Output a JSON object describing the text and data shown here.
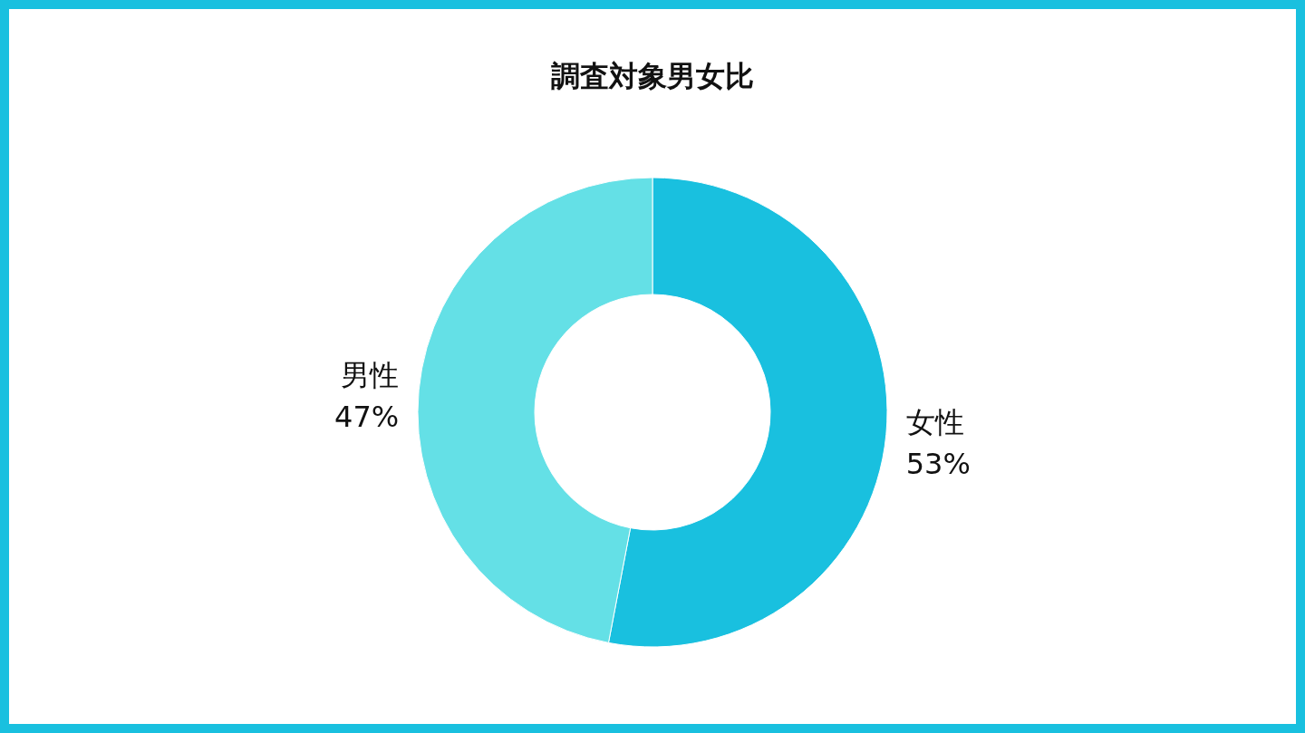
{
  "chart_data": {
    "type": "donut",
    "title": "調査対象男女比",
    "categories": [
      "女性",
      "男性"
    ],
    "values": [
      53,
      47
    ],
    "colors": [
      "#19c0df",
      "#64e0e6"
    ],
    "value_labels": [
      "53%",
      "47%"
    ]
  }
}
